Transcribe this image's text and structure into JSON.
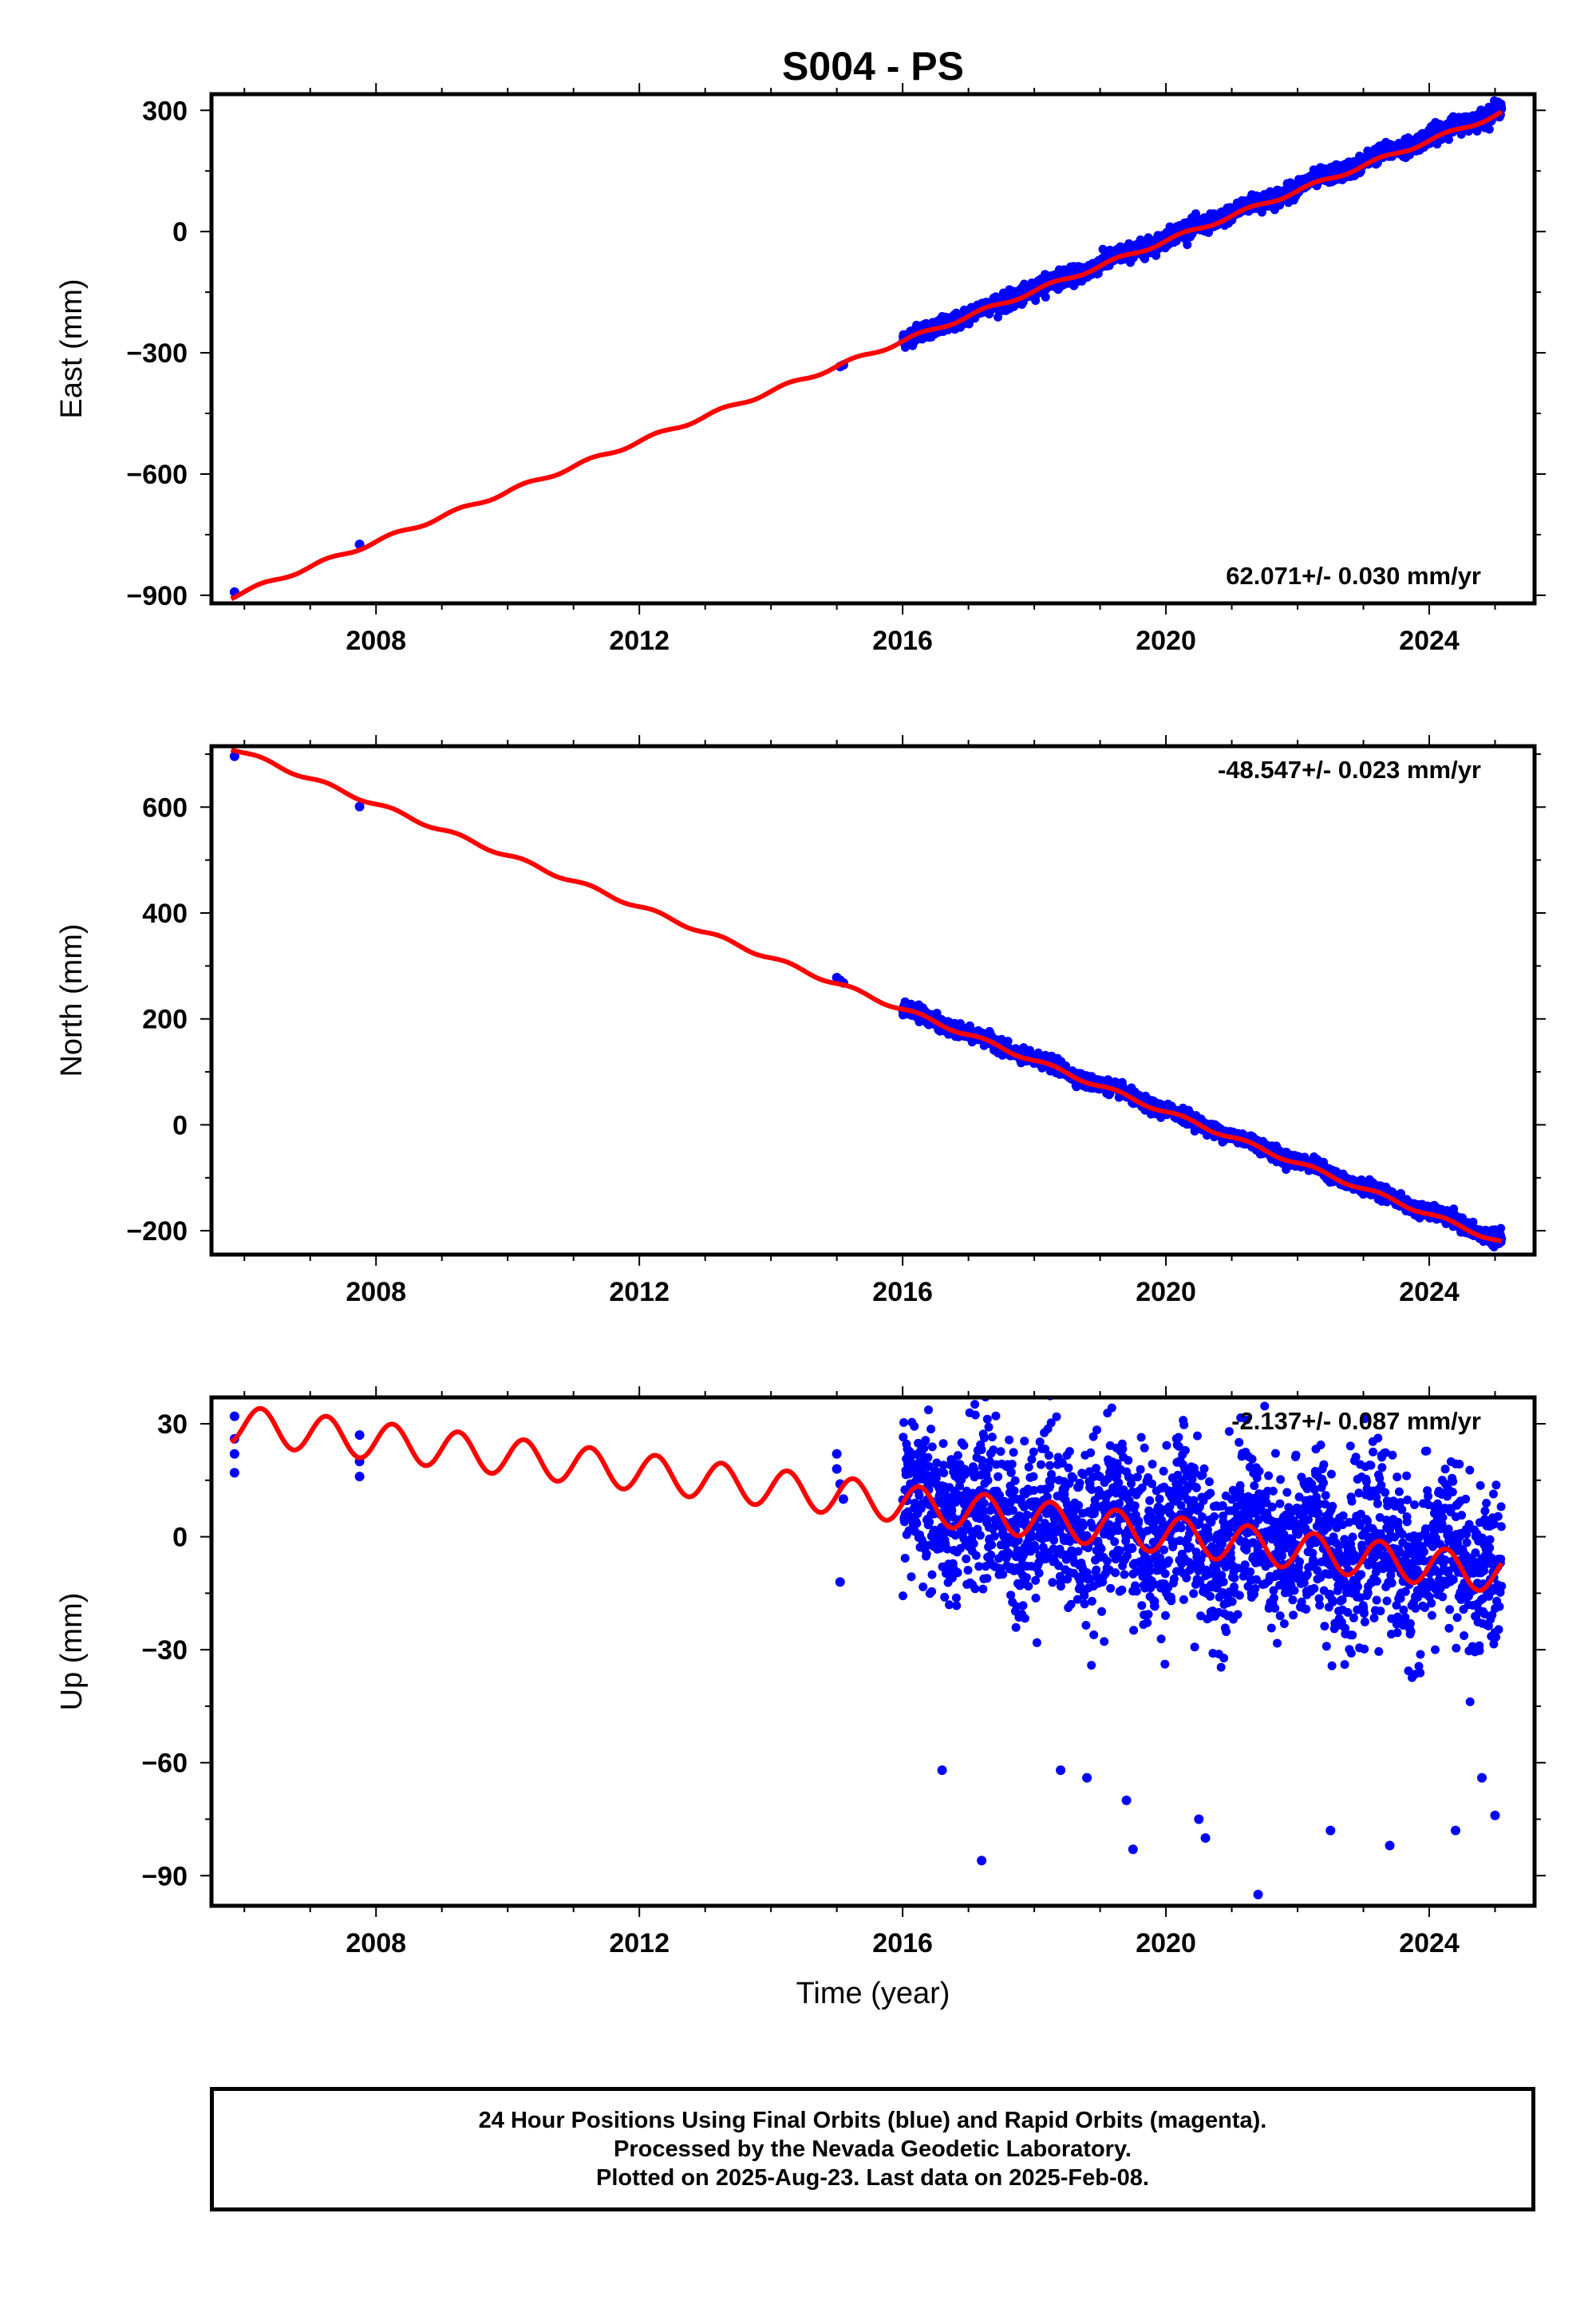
{
  "page_title": "S004 - PS",
  "footer": {
    "line1": "24 Hour Positions Using Final Orbits (blue) and Rapid Orbits (magenta).",
    "line2": "Processed by the Nevada Geodetic Laboratory.",
    "line3": "Plotted on 2025-Aug-23. Last data on 2025-Feb-08."
  },
  "colors": {
    "data_points": "#0000ff",
    "model_fit": "#ff0000",
    "axes": "#000000"
  },
  "chart_data": [
    {
      "type": "scatter",
      "title": "S004 - PS",
      "ylabel": "East (mm)",
      "xlabel": "",
      "xlim": [
        2005.5,
        2025.6
      ],
      "ylim": [
        -920,
        340
      ],
      "x_ticks": [
        2008,
        2012,
        2016,
        2020,
        2024
      ],
      "y_ticks": [
        -900,
        -600,
        -300,
        0,
        300
      ],
      "annotation": "62.071+/- 0.030 mm/yr",
      "series": [
        {
          "role": "data",
          "x": [
            2005.85,
            2007.75,
            2015.05,
            2015.1
          ],
          "y": [
            -892,
            -774,
            -334,
            -330
          ],
          "dense_segment": {
            "x_start": 2016.0,
            "x_end": 2025.1,
            "y_start": -270,
            "y_end": 305,
            "scatter_mm": 10
          }
        },
        {
          "role": "fit",
          "x": [
            2005.8,
            2025.1
          ],
          "y": [
            -904,
            293
          ],
          "seasonal_amplitude_mm": 5
        }
      ]
    },
    {
      "type": "scatter",
      "title": "",
      "ylabel": "North (mm)",
      "xlabel": "",
      "xlim": [
        2005.5,
        2025.6
      ],
      "ylim": [
        -245,
        715
      ],
      "x_ticks": [
        2008,
        2012,
        2016,
        2020,
        2024
      ],
      "y_ticks": [
        -200,
        0,
        200,
        400,
        600
      ],
      "annotation": "-48.547+/- 0.023 mm/yr",
      "series": [
        {
          "role": "data",
          "x": [
            2005.85,
            2007.75,
            2015.0,
            2015.05,
            2015.1
          ],
          "y": [
            696,
            601,
            278,
            273,
            268
          ],
          "dense_segment": {
            "x_start": 2016.0,
            "x_end": 2025.1,
            "y_start": 220,
            "y_end": -218,
            "scatter_mm": 6
          }
        },
        {
          "role": "fit",
          "x": [
            2005.8,
            2025.1
          ],
          "y": [
            712,
            -222
          ],
          "seasonal_amplitude_mm": 4
        }
      ]
    },
    {
      "type": "scatter",
      "title": "",
      "ylabel": "Up (mm)",
      "xlabel": "Time (year)",
      "xlim": [
        2005.5,
        2025.6
      ],
      "ylim": [
        -98,
        37
      ],
      "x_ticks": [
        2008,
        2012,
        2016,
        2020,
        2024
      ],
      "y_ticks": [
        -90,
        -60,
        -30,
        0,
        30
      ],
      "annotation": "-2.137+/- 0.087 mm/yr",
      "series": [
        {
          "role": "data",
          "x": [
            2005.85,
            2005.85,
            2005.85,
            2005.85,
            2007.75,
            2007.75,
            2007.75,
            2015.0,
            2015.0,
            2015.05,
            2015.05,
            2015.1,
            2016.6,
            2017.2,
            2018.4,
            2018.8,
            2019.4,
            2019.5,
            2020.5,
            2020.6,
            2021.4,
            2022.5,
            2023.4,
            2024.4,
            2024.8,
            2025.0
          ],
          "y": [
            32,
            26,
            22,
            17,
            27,
            20,
            16,
            22,
            18,
            14,
            -12,
            10,
            -62,
            -86,
            -62,
            -64,
            -70,
            -83,
            -75,
            -80,
            -95,
            -78,
            -82,
            -78,
            -64,
            -74
          ],
          "dense_segment": {
            "x_start": 2016.0,
            "x_end": 2025.1,
            "y_start": 8,
            "y_end": -8,
            "scatter_mm": 11
          }
        },
        {
          "role": "fit",
          "x": [
            2005.8,
            2025.1
          ],
          "y": [
            30,
            -10
          ],
          "seasonal_amplitude_mm": 5
        }
      ]
    }
  ]
}
